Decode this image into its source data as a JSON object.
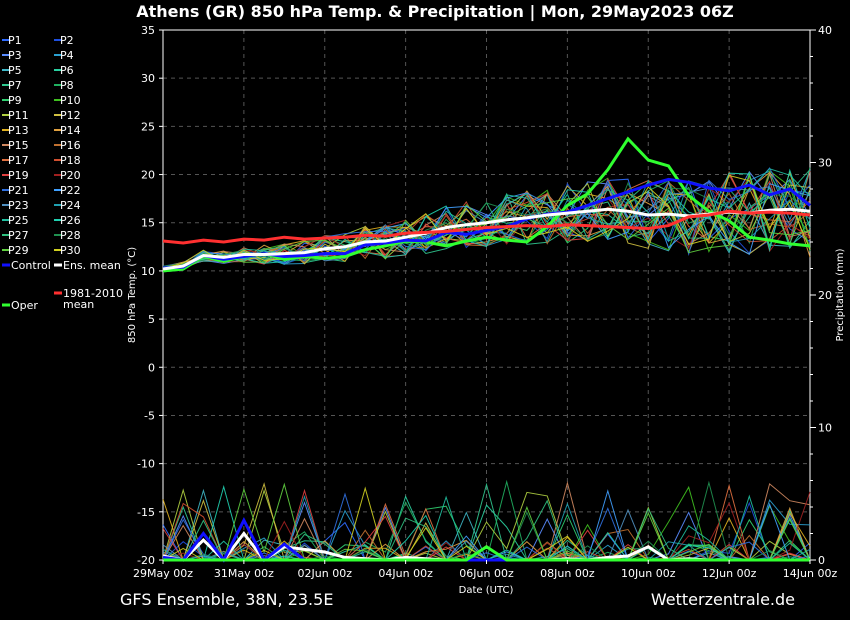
{
  "chart_data": {
    "type": "line",
    "title": "Athens  (GR)  850 hPa Temp. & Precipitation | Mon, 29May2023 06Z",
    "ylabel": "850 hPa Temp. (°C)",
    "ylabel_right": "Precipitation (mm)",
    "xlabel": "Date (UTC)",
    "ylim": [
      -20,
      35
    ],
    "y2lim": [
      0,
      40
    ],
    "xlim": [
      0,
      16
    ],
    "grid": true,
    "yticks": [
      "35",
      "30",
      "25",
      "20",
      "15",
      "10",
      "5",
      "0",
      "-5",
      "-10",
      "-15",
      "-20"
    ],
    "y2ticks": [
      "40",
      "30",
      "20",
      "10",
      "0"
    ],
    "xticks": [
      "29May 00z",
      "31May 00z",
      "02Jun 00z",
      "04Jun 00z",
      "06Jun 00z",
      "08Jun 00z",
      "10Jun 00z",
      "12Jun 00z",
      "14Jun 00z"
    ],
    "footer_left": "GFS Ensemble, 38N, 23.5E",
    "footer_right": "Wetterzentrale.de",
    "legend": [
      {
        "label": "P1",
        "color": "#2f6bff"
      },
      {
        "label": "P2",
        "color": "#1e50e0"
      },
      {
        "label": "P3",
        "color": "#5a8cff"
      },
      {
        "label": "P4",
        "color": "#2aa0d0"
      },
      {
        "label": "P5",
        "color": "#3fb8c8"
      },
      {
        "label": "P6",
        "color": "#2ad0a0"
      },
      {
        "label": "P7",
        "color": "#30c890"
      },
      {
        "label": "P8",
        "color": "#20b060"
      },
      {
        "label": "P9",
        "color": "#30d070"
      },
      {
        "label": "P10",
        "color": "#40c020"
      },
      {
        "label": "P11",
        "color": "#b0d040"
      },
      {
        "label": "P12",
        "color": "#d0c040"
      },
      {
        "label": "P13",
        "color": "#e0b020"
      },
      {
        "label": "P14",
        "color": "#e0a040"
      },
      {
        "label": "P15",
        "color": "#d08860"
      },
      {
        "label": "P16",
        "color": "#c07030"
      },
      {
        "label": "P17",
        "color": "#e07040"
      },
      {
        "label": "P18",
        "color": "#d05030"
      },
      {
        "label": "P19",
        "color": "#e04040"
      },
      {
        "label": "P20",
        "color": "#a02020"
      },
      {
        "label": "P21",
        "color": "#3070e0"
      },
      {
        "label": "P22",
        "color": "#40a0ff"
      },
      {
        "label": "P23",
        "color": "#5090c0"
      },
      {
        "label": "P24",
        "color": "#20a0b0"
      },
      {
        "label": "P25",
        "color": "#20c0a0"
      },
      {
        "label": "P26",
        "color": "#20d0b0"
      },
      {
        "label": "P27",
        "color": "#30c080"
      },
      {
        "label": "P28",
        "color": "#209050"
      },
      {
        "label": "P29",
        "color": "#60d040"
      },
      {
        "label": "P30",
        "color": "#d0d020"
      },
      {
        "label": "Control",
        "color": "#1010ff"
      },
      {
        "label": "Ens. mean",
        "color": "#ffffff"
      },
      {
        "label": "1981-2010",
        "label2": "mean",
        "color": "#ff3030"
      },
      {
        "label": "Oper",
        "color": "#30ff30"
      }
    ],
    "series": [
      {
        "name": "Oper",
        "color": "#30ff30",
        "width": 3,
        "x": [
          0,
          0.5,
          1,
          1.5,
          2,
          2.5,
          3,
          3.5,
          4,
          4.5,
          5,
          5.5,
          6,
          6.5,
          7,
          7.5,
          8,
          8.5,
          9,
          9.5,
          10,
          10.5,
          11,
          11.5,
          12,
          12.5,
          13,
          13.5,
          14,
          14.5,
          15,
          15.5,
          16
        ],
        "y": [
          10,
          10.2,
          11.5,
          11,
          11.5,
          11.8,
          11.2,
          11.5,
          11.3,
          11.5,
          12.2,
          12.6,
          13.1,
          13.0,
          12.6,
          13.1,
          13.5,
          13.2,
          13.0,
          14.6,
          16.8,
          18,
          20.5,
          23.7,
          21.5,
          20.9,
          17.8,
          16.2,
          15.2,
          13.5,
          13.2,
          12.8,
          12.6
        ]
      },
      {
        "name": "Control",
        "color": "#1010ff",
        "width": 3,
        "x": [
          0,
          0.5,
          1,
          1.5,
          2,
          2.5,
          3,
          3.5,
          4,
          4.5,
          5,
          5.5,
          6,
          6.5,
          7,
          7.5,
          8,
          8.5,
          9,
          9.5,
          10,
          10.5,
          11,
          11.5,
          12,
          12.5,
          13,
          13.5,
          14,
          14.5,
          15,
          15.5,
          16
        ],
        "y": [
          10.3,
          10.4,
          11.6,
          11.2,
          11.5,
          11.8,
          11.5,
          11.6,
          11.8,
          11.8,
          12.7,
          12.9,
          13.2,
          13.1,
          14.0,
          13.8,
          14.2,
          14.6,
          15.4,
          15.9,
          16.1,
          16.8,
          17.5,
          18.2,
          18.9,
          19.5,
          19.2,
          18.6,
          18.3,
          18.9,
          17.9,
          18.5,
          16.8
        ]
      },
      {
        "name": "Ens. mean",
        "color": "#ffffff",
        "width": 3,
        "x": [
          0,
          0.5,
          1,
          1.5,
          2,
          2.5,
          3,
          3.5,
          4,
          4.5,
          5,
          5.5,
          6,
          6.5,
          7,
          7.5,
          8,
          8.5,
          9,
          9.5,
          10,
          10.5,
          11,
          11.5,
          12,
          12.5,
          13,
          13.5,
          14,
          14.5,
          15,
          15.5,
          16
        ],
        "y": [
          10.2,
          10.5,
          11.6,
          11.4,
          11.7,
          11.7,
          11.8,
          11.9,
          12.3,
          12.5,
          13.0,
          13.1,
          13.5,
          13.9,
          14.5,
          14.8,
          15.0,
          15.3,
          15.5,
          15.8,
          16.0,
          16.2,
          16.4,
          16.2,
          15.8,
          15.9,
          15.7,
          15.9,
          16.1,
          16.0,
          16.3,
          16.4,
          16.2
        ]
      },
      {
        "name": "1981-2010 mean",
        "color": "#ff3030",
        "width": 3,
        "x": [
          0,
          0.5,
          1,
          1.5,
          2,
          2.5,
          3,
          3.5,
          4,
          4.5,
          5,
          5.5,
          6,
          6.5,
          7,
          7.5,
          8,
          8.5,
          9,
          9.5,
          10,
          10.5,
          11,
          11.5,
          12,
          12.5,
          13,
          13.5,
          14,
          14.5,
          15,
          15.5,
          16
        ],
        "y": [
          13.1,
          12.9,
          13.2,
          13.0,
          13.3,
          13.2,
          13.5,
          13.3,
          13.4,
          13.5,
          13.7,
          13.6,
          13.9,
          14.0,
          14.1,
          14.3,
          14.5,
          14.6,
          14.7,
          14.6,
          14.8,
          14.7,
          14.6,
          14.5,
          14.4,
          14.7,
          15.6,
          15.8,
          16.2,
          16.0,
          16.1,
          16.0,
          15.8
        ]
      }
    ],
    "precip_series": [
      {
        "name": "Ens. mean",
        "color": "#ffffff",
        "width": 3,
        "x": [
          0,
          0.5,
          1,
          1.5,
          2,
          2.5,
          3,
          3.5,
          4,
          4.5,
          5,
          5.5,
          6,
          6.5,
          7,
          7.5,
          8,
          8.5,
          9,
          9.5,
          10,
          10.5,
          11,
          11.5,
          12,
          12.5,
          13,
          13.5,
          14,
          14.5,
          15,
          15.5,
          16
        ],
        "y": [
          0.3,
          0,
          1.5,
          0,
          2,
          0,
          1,
          0.8,
          0.6,
          0.2,
          0.1,
          0,
          0.2,
          0.1,
          0,
          0,
          0,
          0,
          0,
          0,
          0.1,
          0,
          0.2,
          0.3,
          1.0,
          0,
          0.1,
          0,
          0,
          0,
          0,
          0,
          0
        ]
      },
      {
        "name": "Control",
        "color": "#1010ff",
        "width": 3,
        "x": [
          0,
          0.5,
          1,
          1.5,
          2,
          2.5,
          3,
          3.5,
          4,
          4.5,
          5,
          5.5,
          6,
          6.5,
          7,
          7.5,
          8,
          8.5,
          9,
          9.5,
          10,
          10.5,
          11,
          11.5,
          12,
          12.5,
          13,
          13.5,
          14,
          14.5,
          15,
          15.5,
          16
        ],
        "y": [
          0.2,
          0,
          2.0,
          0,
          3,
          0,
          1.2,
          0,
          0,
          0,
          0,
          0,
          0,
          0,
          0,
          0,
          0,
          0,
          0,
          0,
          0,
          0,
          0,
          0,
          0,
          0,
          0,
          0,
          0,
          0,
          0,
          0,
          0
        ]
      },
      {
        "name": "Oper",
        "color": "#30ff30",
        "width": 3,
        "x": [
          0,
          0.5,
          1,
          1.5,
          2,
          2.5,
          3,
          3.5,
          4,
          4.5,
          5,
          5.5,
          6,
          6.5,
          7,
          7.5,
          8,
          8.5,
          9,
          9.5,
          10,
          10.5,
          11,
          11.5,
          12,
          12.5,
          13,
          13.5,
          14,
          14.5,
          15,
          15.5,
          16
        ],
        "y": [
          0,
          0,
          0,
          0,
          0,
          0,
          0,
          0,
          0,
          0,
          0,
          0,
          0,
          0,
          0,
          0,
          1,
          0,
          0,
          0,
          0,
          0,
          0,
          0,
          0,
          0,
          0,
          0,
          0,
          0,
          0,
          0,
          0
        ]
      }
    ]
  }
}
